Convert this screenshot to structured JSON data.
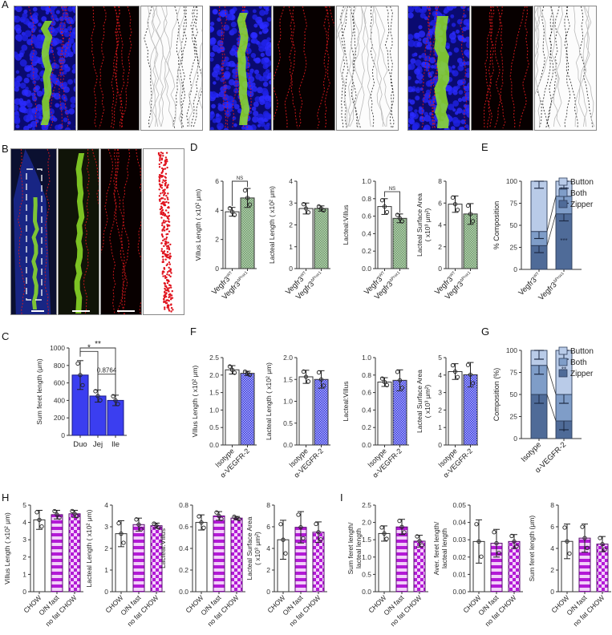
{
  "panels": {
    "A": "A",
    "B": "B",
    "C": "C",
    "D": "D",
    "E": "E",
    "F": "F",
    "G": "G",
    "H": "H",
    "I": "I"
  },
  "colors": {
    "blue_bar": "#3b3ef0",
    "green_hatch": "#9cc29a",
    "blue_hatch": "#4b4cf0",
    "magenta": "#b31ad6",
    "button": "#b9cbe8",
    "both": "#7f9dc8",
    "zipper": "#4f6b98"
  },
  "chart_data": [
    {
      "id": "C",
      "type": "bar",
      "title": "",
      "categories": [
        "Duo",
        "Jej",
        "Ile"
      ],
      "values": [
        690,
        450,
        400
      ],
      "errors": [
        165,
        70,
        60
      ],
      "ylabel": "Sum feret length (μm)",
      "ylim": [
        0,
        1000
      ],
      "yticks": [
        "0",
        "200",
        "400",
        "600",
        "800",
        "1000"
      ],
      "annotations": [
        "*",
        "**",
        "0.8764"
      ]
    },
    {
      "id": "D1",
      "type": "bar",
      "categories": [
        "Vegfr3WT",
        "Vegfr3ΔProx1"
      ],
      "values": [
        3.9,
        4.85
      ],
      "errors": [
        0.3,
        0.65
      ],
      "ylabel": "Villus Length ( x10² μm)",
      "ylim": [
        0,
        6
      ],
      "yticks": [
        "0",
        "2",
        "4",
        "6"
      ],
      "annotations": [
        "NS"
      ]
    },
    {
      "id": "D2",
      "type": "bar",
      "categories": [
        "Vegfr3WT",
        "Vegfr3ΔProx1"
      ],
      "values": [
        2.75,
        2.75
      ],
      "errors": [
        0.25,
        0.12
      ],
      "ylabel": "Lacteal Length ( x10² μm)",
      "ylim": [
        0,
        4
      ],
      "yticks": [
        "0",
        "1",
        "2",
        "3",
        "4"
      ]
    },
    {
      "id": "D3",
      "type": "bar",
      "categories": [
        "Vegfr3WT",
        "Vegfr3ΔProx1"
      ],
      "values": [
        0.71,
        0.575
      ],
      "errors": [
        0.09,
        0.05
      ],
      "ylabel": "Lacteal:Villus",
      "ylim": [
        0,
        1.0
      ],
      "yticks": [
        "0.0",
        "0.2",
        "0.4",
        "0.6",
        "0.8",
        "1.0"
      ],
      "annotations": [
        "NS"
      ]
    },
    {
      "id": "D4",
      "type": "bar",
      "categories": [
        "Vegfr3WT",
        "Vegfr3ΔProx1"
      ],
      "values": [
        5.9,
        5.0
      ],
      "errors": [
        0.75,
        0.95
      ],
      "ylabel": "Lacteal Surface Area ( x10³ μm²)",
      "ylim": [
        0,
        8
      ],
      "yticks": [
        "0",
        "2",
        "4",
        "6",
        "8"
      ]
    },
    {
      "id": "E",
      "type": "bar",
      "stacked": true,
      "categories": [
        "Vegfr3WT",
        "Vegfr3ΔProx1"
      ],
      "series": [
        {
          "name": "Zipper",
          "values": [
            27,
            63
          ]
        },
        {
          "name": "Both",
          "values": [
            16,
            20
          ]
        },
        {
          "name": "Button",
          "values": [
            57,
            17
          ]
        }
      ],
      "ylabel": "% Composition",
      "ylim": [
        0,
        100
      ],
      "yticks": [
        "0",
        "25",
        "50",
        "75",
        "100"
      ],
      "annotations": [
        "***",
        "***"
      ],
      "legend": [
        "Button",
        "Both",
        "Zipper"
      ]
    },
    {
      "id": "F1",
      "type": "bar",
      "categories": [
        "Isotype",
        "α-VEGFR-2"
      ],
      "values": [
        2.15,
        2.05
      ],
      "errors": [
        0.12,
        0.06
      ],
      "ylabel": "Villus Length ( x10² μm)",
      "ylim": [
        0,
        2.5
      ],
      "yticks": [
        "0.0",
        "0.5",
        "1.0",
        "1.5",
        "2.0",
        "2.5"
      ]
    },
    {
      "id": "F2",
      "type": "bar",
      "categories": [
        "Isotype",
        "α-VEGFR-2"
      ],
      "values": [
        1.56,
        1.5
      ],
      "errors": [
        0.15,
        0.2
      ],
      "ylabel": "Lacteal Length ( x10² μm)",
      "ylim": [
        0,
        2.0
      ],
      "yticks": [
        "0.0",
        "0.5",
        "1.0",
        "1.5",
        "2.0"
      ]
    },
    {
      "id": "F3",
      "type": "bar",
      "categories": [
        "Isotype",
        "α-VEGFR-2"
      ],
      "values": [
        0.72,
        0.74
      ],
      "errors": [
        0.05,
        0.12
      ],
      "ylabel": "Lacteal:Villus",
      "ylim": [
        0,
        1.0
      ],
      "yticks": [
        "0.0",
        "0.2",
        "0.4",
        "0.6",
        "0.8",
        "1.0"
      ]
    },
    {
      "id": "F4",
      "type": "bar",
      "categories": [
        "Isotype",
        "α-VEGFR-2"
      ],
      "values": [
        4.2,
        4.02
      ],
      "errors": [
        0.45,
        0.7
      ],
      "ylabel": "Lacteal Surface Area ( x10³ μm²)",
      "ylim": [
        0,
        5
      ],
      "yticks": [
        "0",
        "1",
        "2",
        "3",
        "4",
        "5"
      ]
    },
    {
      "id": "G",
      "type": "bar",
      "stacked": true,
      "categories": [
        "Isotype",
        "α-VEGFR-2"
      ],
      "series": [
        {
          "name": "Zipper",
          "values": [
            50,
            20
          ]
        },
        {
          "name": "Both",
          "values": [
            33,
            30
          ]
        },
        {
          "name": "Button",
          "values": [
            17,
            50
          ]
        }
      ],
      "ylabel": "Composition (%)",
      "ylim": [
        0,
        100
      ],
      "yticks": [
        "0",
        "25",
        "50",
        "75",
        "100"
      ],
      "annotations": [
        "**",
        "*"
      ],
      "legend": [
        "Button",
        "Both",
        "Zipper"
      ]
    },
    {
      "id": "H1",
      "type": "bar",
      "categories": [
        "CHOW",
        "O/N fast",
        "no fat CHOW"
      ],
      "values": [
        4.15,
        4.45,
        4.5
      ],
      "errors": [
        0.55,
        0.25,
        0.2
      ],
      "ylabel": "Villus Length ( x10² μm)",
      "ylim": [
        0,
        5
      ],
      "yticks": [
        "0",
        "1",
        "2",
        "3",
        "4",
        "5"
      ]
    },
    {
      "id": "H2",
      "type": "bar",
      "categories": [
        "CHOW",
        "O/N fast",
        "no fat CHOW"
      ],
      "values": [
        2.68,
        3.1,
        3.05
      ],
      "errors": [
        0.6,
        0.3,
        0.12
      ],
      "ylabel": "Lacteal Length ( x10² μm)",
      "ylim": [
        0,
        4
      ],
      "yticks": [
        "0",
        "1",
        "2",
        "3",
        "4"
      ]
    },
    {
      "id": "H3",
      "type": "bar",
      "categories": [
        "CHOW",
        "O/N fast",
        "no fat CHOW"
      ],
      "values": [
        0.64,
        0.7,
        0.68
      ],
      "errors": [
        0.07,
        0.04,
        0.015
      ],
      "ylabel": "Lacteal:Villus",
      "ylim": [
        0,
        0.8
      ],
      "yticks": [
        "0.0",
        "0.2",
        "0.4",
        "0.6",
        "0.8"
      ]
    },
    {
      "id": "H4",
      "type": "bar",
      "categories": [
        "CHOW",
        "O/N fast",
        "no fat CHOW"
      ],
      "values": [
        4.8,
        5.95,
        5.5
      ],
      "errors": [
        1.8,
        1.45,
        0.95
      ],
      "ylabel": "Lacteal Surface Area ( x10³ μm²)",
      "ylim": [
        0,
        8
      ],
      "yticks": [
        "0",
        "2",
        "4",
        "6",
        "8"
      ]
    },
    {
      "id": "I1",
      "type": "bar",
      "categories": [
        "CHOW",
        "O/N fast",
        "no fat CHOW"
      ],
      "values": [
        1.68,
        1.87,
        1.46
      ],
      "errors": [
        0.22,
        0.22,
        0.17
      ],
      "ylabel": "Sum feret length/ lacteal length",
      "ylim": [
        0,
        2.5
      ],
      "yticks": [
        "0.0",
        "0.5",
        "1.0",
        "1.5",
        "2.0",
        "2.5"
      ]
    },
    {
      "id": "I2",
      "type": "bar",
      "categories": [
        "CHOW",
        "O/N fast",
        "no fat CHOW"
      ],
      "values": [
        0.029,
        0.028,
        0.029
      ],
      "errors": [
        0.0125,
        0.008,
        0.004
      ],
      "ylabel": "Aver. feret length/ lacteal length",
      "ylim": [
        0,
        0.05
      ],
      "yticks": [
        "0.00",
        "0.01",
        "0.02",
        "0.03",
        "0.04",
        "0.05"
      ]
    },
    {
      "id": "I3",
      "type": "bar",
      "categories": [
        "CHOW",
        "O/N fast",
        "no fat CHOW"
      ],
      "values": [
        4.65,
        4.95,
        4.4
      ],
      "errors": [
        1.6,
        1.3,
        0.7
      ],
      "ylabel": "Sum feret length (μm)",
      "ylim": [
        0,
        8
      ],
      "yticks": [
        "0",
        "2",
        "4",
        "6",
        "8"
      ]
    }
  ]
}
